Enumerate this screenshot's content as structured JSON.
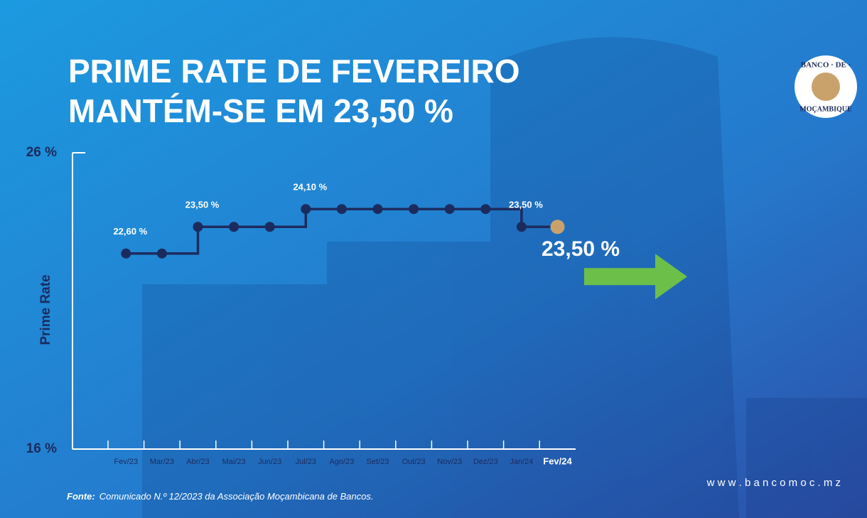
{
  "chart_data": {
    "type": "line",
    "step": true,
    "title": [
      "PRIME RATE DE FEVEREIRO",
      "MANTÉM-SE EM 23,50 %"
    ],
    "y_label": "Prime Rate",
    "categories": [
      "Fev/23",
      "Mar/23",
      "Abr/23",
      "Mai/23",
      "Jun/23",
      "Jul/23",
      "Ago/23",
      "Set/23",
      "Out/23",
      "Nov/23",
      "Dez/23",
      "Jan/24",
      "Fev/24"
    ],
    "values": [
      22.6,
      22.6,
      23.5,
      23.5,
      23.5,
      24.1,
      24.1,
      24.1,
      24.1,
      24.1,
      24.1,
      23.5,
      23.5
    ],
    "value_labels": [
      "22,60 %",
      null,
      "23,50 %",
      null,
      null,
      "24,10 %",
      null,
      null,
      null,
      null,
      null,
      "23,50 %",
      null
    ],
    "color": "#1c2b5e",
    "last_point_color": "#c9a26b",
    "ylim": [
      16,
      26
    ],
    "yticks": [
      {
        "value": 16,
        "label": "16 %"
      },
      {
        "value": 26,
        "label": "26 %"
      }
    ],
    "annotation": "23,50 %",
    "arrow_color": "#6cc04a"
  },
  "source_label": "Fonte:",
  "source": "Comunicado N.º 12/2023 da Associação Moçambicana de Bancos.",
  "logo": {
    "top": "BANCO · DE ·",
    "bottom": "MOÇAMBIQUE"
  },
  "website": "w w w . b a n c o m o c . m z"
}
